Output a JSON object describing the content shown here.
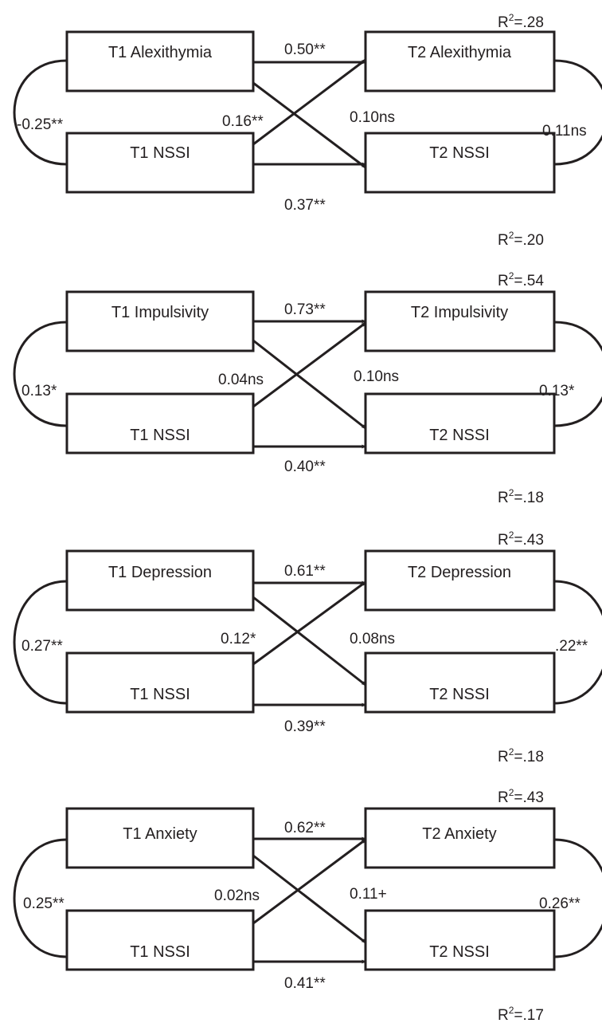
{
  "panels": [
    {
      "t1_a": "T1 Alexithymia",
      "t1_b": "T1 NSSI",
      "t2_a": "T2 Alexithymia",
      "t2_b": "T2 NSSI",
      "path_a": "0.50**",
      "path_b": "0.37**",
      "cross_a_to_b": "0.16**",
      "cross_b_to_a": "0.10ns",
      "cov_t1": "-0.25**",
      "cov_t2": "0.11ns",
      "r2_a_val": "=.28",
      "r2_b_val": "=.20"
    },
    {
      "t1_a": "T1 Impulsivity",
      "t1_b": "T1 NSSI",
      "t2_a": "T2 Impulsivity",
      "t2_b": "T2 NSSI",
      "path_a": "0.73**",
      "path_b": "0.40**",
      "cross_a_to_b": "0.04ns",
      "cross_b_to_a": "0.10ns",
      "cov_t1": "0.13*",
      "cov_t2": "0.13*",
      "r2_a_val": "=.54",
      "r2_b_val": "=.18"
    },
    {
      "t1_a": "T1 Depression",
      "t1_b": "T1 NSSI",
      "t2_a": "T2 Depression",
      "t2_b": "T2 NSSI",
      "path_a": "0.61**",
      "path_b": "0.39**",
      "cross_a_to_b": "0.12*",
      "cross_b_to_a": "0.08ns",
      "cov_t1": "0.27**",
      "cov_t2": ".22**",
      "r2_a_val": "=.43",
      "r2_b_val": "=.18"
    },
    {
      "t1_a": "T1 Anxiety",
      "t1_b": "T1 NSSI",
      "t2_a": "T2 Anxiety",
      "t2_b": "T2 NSSI",
      "path_a": "0.62**",
      "path_b": "0.41**",
      "cross_a_to_b": "0.02ns",
      "cross_b_to_a": "0.11+",
      "cov_t1": "0.25**",
      "cov_t2": "0.26**",
      "r2_a_val": "=.43",
      "r2_b_val": "=.17"
    }
  ],
  "r2_symbol": "R",
  "r2_exponent": "2"
}
